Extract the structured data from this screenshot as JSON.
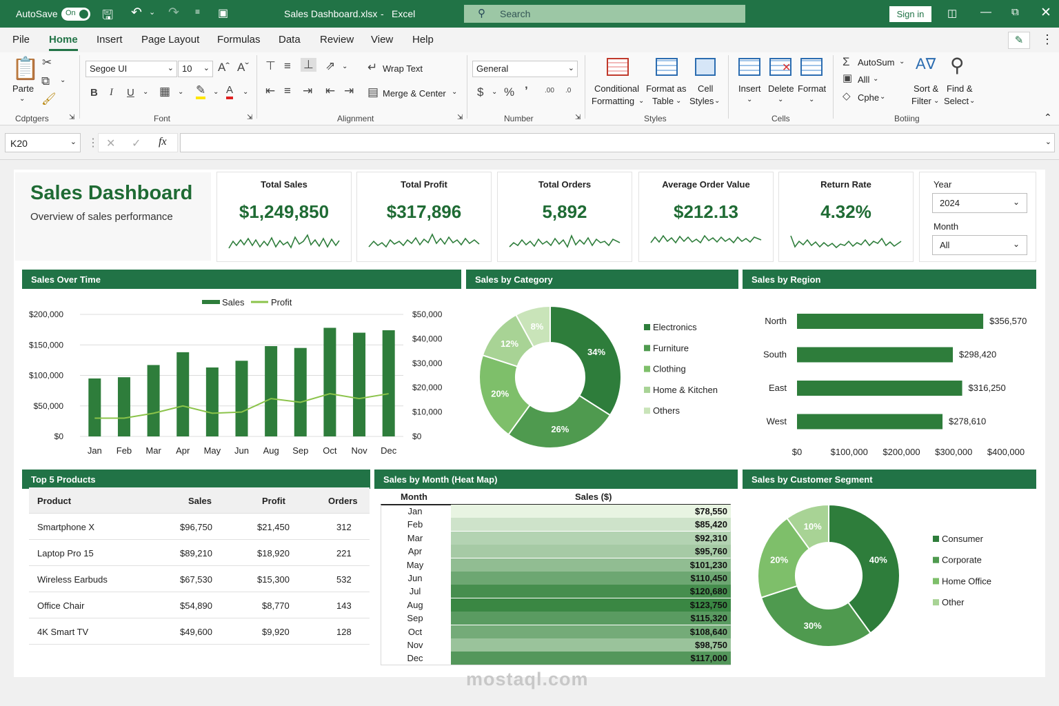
{
  "titlebar": {
    "autosave": "AutoSave",
    "toggle": "On",
    "filename": "Sales Dashboard.xlsx",
    "app": "Excel",
    "search": "Search",
    "signin": "Sign in"
  },
  "menu": [
    "Pile",
    "Home",
    "Insert",
    "Page Layout",
    "Formulas",
    "Data",
    "Review",
    "View",
    "Help"
  ],
  "ribbon": {
    "paste": "Parte",
    "clipboard": "Cdptgers",
    "font_name": "Segoe UI",
    "font_size": "10",
    "font": "Font",
    "wrap": "Wrap Text",
    "merge": "Merge & Center",
    "alignment": "Alignment",
    "numfmt": "General",
    "number": "Number",
    "cond1": "Conditional",
    "cond2": "Formatting",
    "fmt1": "Format as",
    "fmt2": "Table",
    "cell1": "Cell",
    "cell2": "Styles",
    "styles": "Styles",
    "insert": "Insert",
    "delete": "Delete",
    "format": "Format",
    "cells": "Cells",
    "autosum": "AutoSum",
    "alll": "Alll",
    "cphe": "Cphe",
    "sort1": "Sort &",
    "sort2": "Filter",
    "find1": "Find &",
    "find2": "Select",
    "editing": "Botiing"
  },
  "formula": {
    "namebox": "K20",
    "fx": "fx"
  },
  "dashboard": {
    "title": "Sales Dashboard",
    "subtitle": "Overview of sales performance"
  },
  "kpis": [
    {
      "label": "Total Sales",
      "value": "$1,249,850"
    },
    {
      "label": "Total Profit",
      "value": "$317,896"
    },
    {
      "label": "Total Orders",
      "value": "5,892"
    },
    {
      "label": "Average Order Value",
      "value": "$212.13"
    },
    {
      "label": "Return Rate",
      "value": "4.32%"
    }
  ],
  "filters": {
    "year_label": "Year",
    "year": "2024",
    "month_label": "Month",
    "month": "All"
  },
  "colors": {
    "dark": "#2e7d3b",
    "mid": "#4f9a4f",
    "light": "#7ebf6a",
    "lighter": "#a8d395",
    "lightest": "#c9e4b9",
    "profit": "#8bc34a"
  },
  "panels": {
    "sales_over_time": "Sales Over Time",
    "category": "Sales by Category",
    "region": "Sales by Region",
    "top5": "Top 5 Products",
    "heatmap": "Sales by Month (Heat Map)",
    "segment": "Sales by Customer Segment"
  },
  "chart_data": [
    {
      "type": "bar",
      "title": "Sales Over Time",
      "categories": [
        "Jan",
        "Feb",
        "Mar",
        "Apr",
        "May",
        "Jun",
        "Aug",
        "Sep",
        "Oct",
        "Nov",
        "Dec"
      ],
      "series": [
        {
          "name": "Sales",
          "values": [
            95000,
            97000,
            117000,
            138000,
            113000,
            124000,
            148000,
            145000,
            178000,
            170000,
            174000
          ]
        },
        {
          "name": "Profit",
          "values": [
            7500,
            7500,
            9500,
            12500,
            9500,
            10000,
            15500,
            14000,
            17500,
            15500,
            17500
          ]
        }
      ],
      "ylim": [
        0,
        200000
      ],
      "y_ticks": [
        "$200,000",
        "$150,000",
        "$100,000",
        "$50,000",
        "$0"
      ],
      "y2lim": [
        0,
        50000
      ],
      "y2_ticks": [
        "$50,000",
        "$40,000",
        "$30,000",
        "$20,000",
        "$10,000",
        "$0"
      ],
      "legend": "top"
    },
    {
      "type": "pie",
      "title": "Sales by Category",
      "labels": [
        "Electronics",
        "Furniture",
        "Clothing",
        "Home & Kitchen",
        "Others"
      ],
      "values": [
        34,
        26,
        20,
        12,
        8
      ],
      "value_labels": [
        "34%",
        "26%",
        "20%",
        "12%",
        "8%"
      ]
    },
    {
      "type": "bar",
      "title": "Sales by Region",
      "categories": [
        "North",
        "South",
        "East",
        "West"
      ],
      "values": [
        356570,
        298420,
        316250,
        278610
      ],
      "value_labels": [
        "$356,570",
        "$298,420",
        "$316,250",
        "$278,610"
      ],
      "xlim": [
        0,
        400000
      ],
      "x_ticks": [
        "$0",
        "$100,000",
        "$200,000",
        "$300,000",
        "$400,000"
      ]
    },
    {
      "type": "table",
      "title": "Top 5 Products",
      "columns": [
        "Product",
        "Sales",
        "Profit",
        "Orders"
      ],
      "rows": [
        [
          "Smartphone X",
          "$96,750",
          "$21,450",
          "312"
        ],
        [
          "Laptop Pro 15",
          "$89,210",
          "$18,920",
          "221"
        ],
        [
          "Wireless Earbuds",
          "$67,530",
          "$15,300",
          "532"
        ],
        [
          "Office Chair",
          "$54,890",
          "$8,770",
          "143"
        ],
        [
          "4K Smart TV",
          "$49,600",
          "$9,920",
          "128"
        ]
      ]
    },
    {
      "type": "heatmap",
      "title": "Sales by Month (Heat Map)",
      "columns": [
        "Month",
        "Sales ($)"
      ],
      "months": [
        "Jan",
        "Feb",
        "Mar",
        "Apr",
        "May",
        "Jun",
        "Jul",
        "Aug",
        "Sep",
        "Oct",
        "Nov",
        "Dec"
      ],
      "values": [
        78550,
        85420,
        92310,
        95760,
        101230,
        110450,
        120680,
        123750,
        115320,
        108640,
        98750,
        117000
      ],
      "value_labels": [
        "$78,550",
        "$85,420",
        "$92,310",
        "$95,760",
        "$101,230",
        "$110,450",
        "$120,680",
        "$123,750",
        "$115,320",
        "$108,640",
        "$98,750",
        "$117,000"
      ]
    },
    {
      "type": "pie",
      "title": "Sales by Customer Segment",
      "labels": [
        "Consumer",
        "Corporate",
        "Home Office",
        "Other"
      ],
      "values": [
        40,
        30,
        20,
        10
      ],
      "value_labels": [
        "40%",
        "30%",
        "20%",
        "10%"
      ]
    }
  ],
  "watermark": "mostaql.com"
}
